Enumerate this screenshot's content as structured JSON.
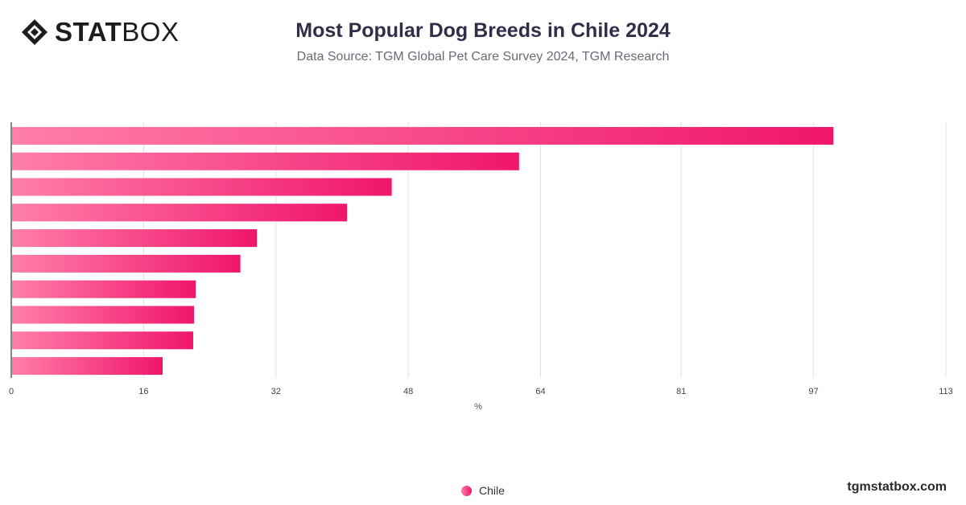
{
  "brand": {
    "logo_bold": "STAT",
    "logo_light": "BOX",
    "site": "tgmstatbox.com"
  },
  "header": {
    "title": "Most Popular Dog Breeds in Chile 2024",
    "subtitle": "Data Source: TGM Global Pet Care Survey 2024, TGM Research"
  },
  "colors": {
    "bar_start": "#ff7eaa",
    "bar_end": "#f0166a",
    "grid": "#e3e3e3",
    "axis": "#333333"
  },
  "legend": {
    "label": "Chile"
  },
  "chart_data": {
    "type": "bar",
    "orientation": "horizontal",
    "categories": [
      "",
      "",
      "",
      "",
      "",
      "",
      "",
      "",
      "",
      ""
    ],
    "series": [
      {
        "name": "Chile",
        "values": [
          99.4,
          61.4,
          46.0,
          40.6,
          29.7,
          27.7,
          22.3,
          22.1,
          22.0,
          18.3
        ]
      }
    ],
    "xlabel": "%",
    "ylabel": "",
    "xticks": [
      0,
      16,
      32,
      48,
      64,
      81,
      97,
      113
    ],
    "xlim": [
      0,
      113
    ],
    "grid": "vertical",
    "legend_position": "bottom-center"
  }
}
